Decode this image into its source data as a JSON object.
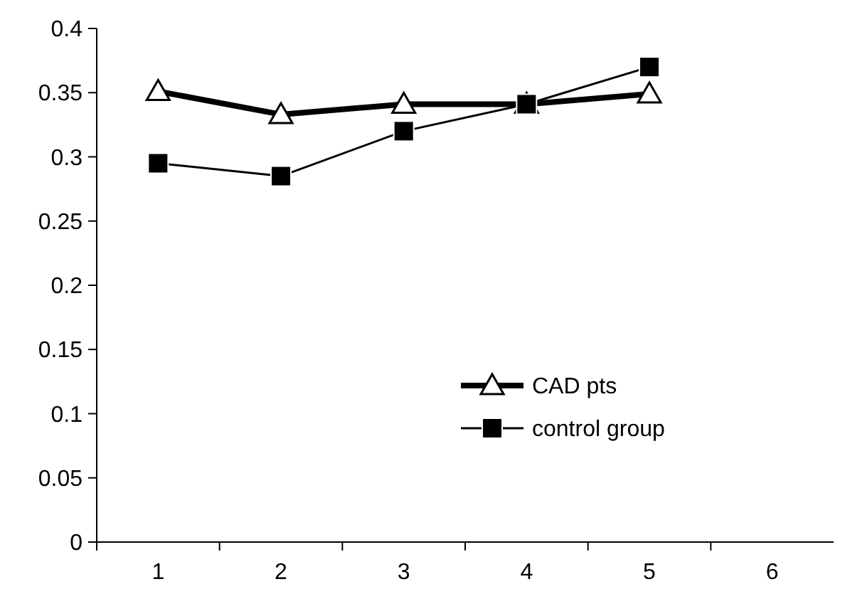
{
  "chart_data": {
    "type": "line",
    "categories": [
      "1",
      "2",
      "3",
      "4",
      "5",
      "6"
    ],
    "series": [
      {
        "name": "CAD pts",
        "color": "#000000",
        "marker": "triangle",
        "values": [
          0.351,
          0.333,
          0.341,
          0.341,
          0.349,
          null
        ]
      },
      {
        "name": "control group",
        "color": "#000000",
        "marker": "square",
        "values": [
          0.295,
          0.285,
          0.32,
          0.341,
          0.37,
          null
        ]
      }
    ],
    "ylim": [
      0,
      0.4
    ],
    "yticks": [
      0,
      0.05,
      0.1,
      0.15,
      0.2,
      0.25,
      0.3,
      0.35,
      0.4
    ],
    "grid": false,
    "legend": "bottom right"
  }
}
